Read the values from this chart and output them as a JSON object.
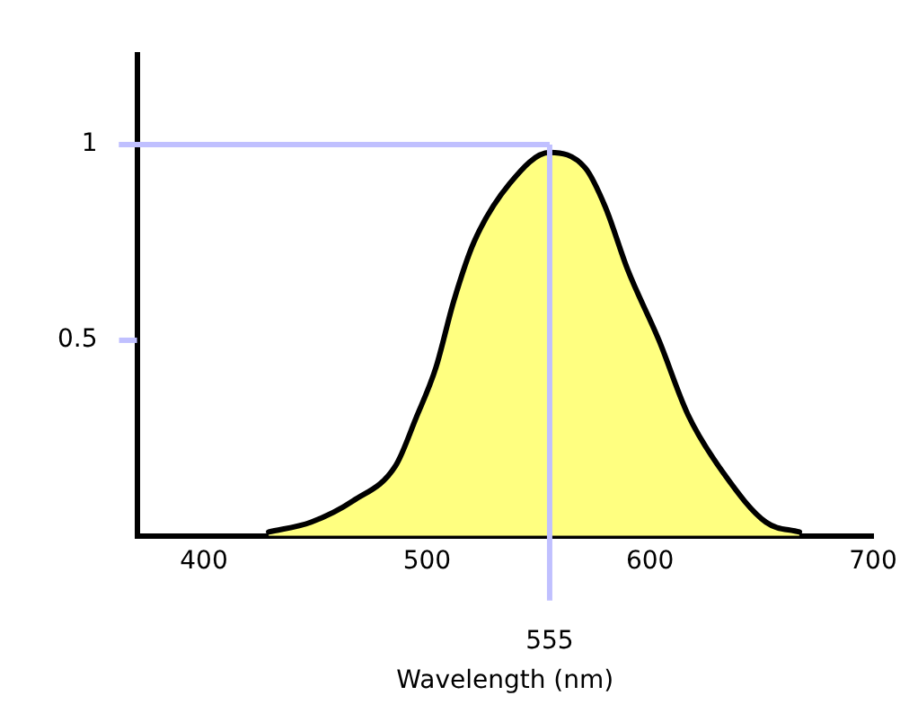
{
  "chart_data": {
    "type": "area",
    "xlabel": "Wavelength (nm)",
    "x": [
      429,
      448,
      467,
      486,
      495,
      504,
      512,
      521,
      537,
      555,
      571,
      580,
      590,
      604,
      617,
      633,
      652,
      667
    ],
    "series": [
      {
        "color": "#000000",
        "values": [
          0.01,
          0.035,
          0.09,
          0.18,
          0.3,
          0.43,
          0.6,
          0.75,
          0.9,
          0.98,
          0.94,
          0.84,
          0.68,
          0.5,
          0.31,
          0.16,
          0.035,
          0.01
        ]
      }
    ],
    "xlim": [
      370,
      700
    ],
    "xticks": [
      400,
      500,
      600,
      700
    ],
    "ylim": [
      0,
      1.23
    ],
    "yticks": [
      0.5,
      1
    ],
    "ref_lines": [
      {
        "axis": "y",
        "value": 1,
        "color": "#c0c0ff"
      },
      {
        "axis": "x",
        "value": 555,
        "label": "555",
        "color": "#c0c0ff"
      }
    ],
    "grid": false,
    "legend": false
  }
}
